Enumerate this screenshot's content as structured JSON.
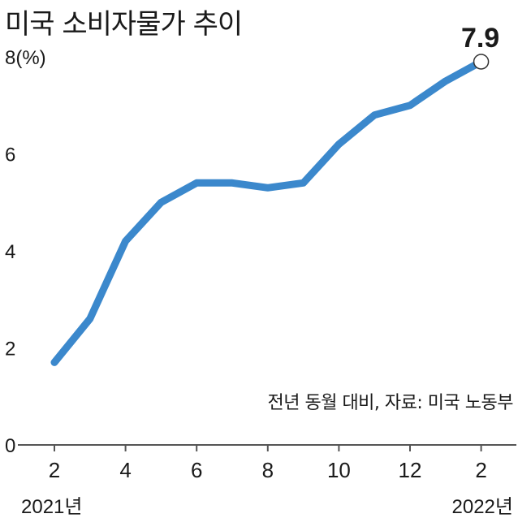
{
  "title": "미국 소비자물가 추이",
  "source_note": "전년 동월 대비, 자료: 미국 노동부",
  "chart_data": {
    "type": "line",
    "title": "미국 소비자물가 추이",
    "ylabel": "",
    "y_unit_label": "8(%)",
    "ylim": [
      0,
      8
    ],
    "y_ticks": [
      {
        "value": 0,
        "label": "0"
      },
      {
        "value": 2,
        "label": "2"
      },
      {
        "value": 4,
        "label": "4"
      },
      {
        "value": 6,
        "label": "6"
      },
      {
        "value": 8,
        "label": "8(%)"
      }
    ],
    "x_ticks": [
      {
        "index": 0,
        "label": "2"
      },
      {
        "index": 2,
        "label": "4"
      },
      {
        "index": 4,
        "label": "6"
      },
      {
        "index": 6,
        "label": "8"
      },
      {
        "index": 8,
        "label": "10"
      },
      {
        "index": 10,
        "label": "12"
      },
      {
        "index": 12,
        "label": "2"
      }
    ],
    "year_labels": {
      "start": "2021년",
      "end": "2022년"
    },
    "x": [
      "2021-02",
      "2021-03",
      "2021-04",
      "2021-05",
      "2021-06",
      "2021-07",
      "2021-08",
      "2021-09",
      "2021-10",
      "2021-11",
      "2021-12",
      "2022-01",
      "2022-02"
    ],
    "series": [
      {
        "values": [
          1.7,
          2.6,
          4.2,
          5.0,
          5.4,
          5.4,
          5.3,
          5.4,
          6.2,
          6.8,
          7.0,
          7.5,
          7.9
        ],
        "color": "#3b88cc"
      }
    ],
    "callout": {
      "index": 12,
      "label": "7.9"
    },
    "grid": false,
    "axis_color": "#555555"
  }
}
